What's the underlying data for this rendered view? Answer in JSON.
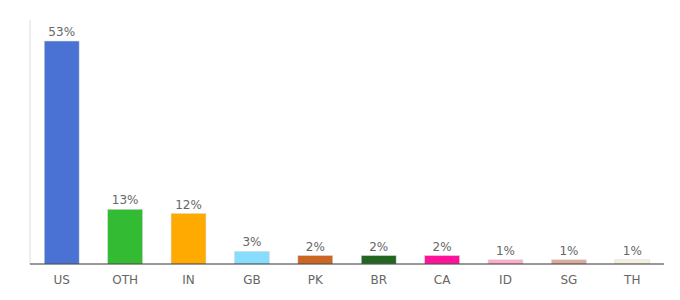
{
  "chart_data": {
    "type": "bar",
    "categories": [
      "US",
      "OTH",
      "IN",
      "GB",
      "PK",
      "BR",
      "CA",
      "ID",
      "SG",
      "TH"
    ],
    "values": [
      53,
      13,
      12,
      3,
      2,
      2,
      2,
      1,
      1,
      1
    ],
    "value_labels": [
      "53%",
      "13%",
      "12%",
      "3%",
      "2%",
      "2%",
      "2%",
      "1%",
      "1%",
      "1%"
    ],
    "colors": [
      "#4a72d4",
      "#33bb33",
      "#ffaa00",
      "#88ddff",
      "#cc6622",
      "#226622",
      "#ff1199",
      "#ffaacc",
      "#ddaa99",
      "#f5f0dc"
    ],
    "ylim": [
      0,
      58
    ],
    "data_labels": true,
    "tick_labels": "x",
    "grid": false
  }
}
